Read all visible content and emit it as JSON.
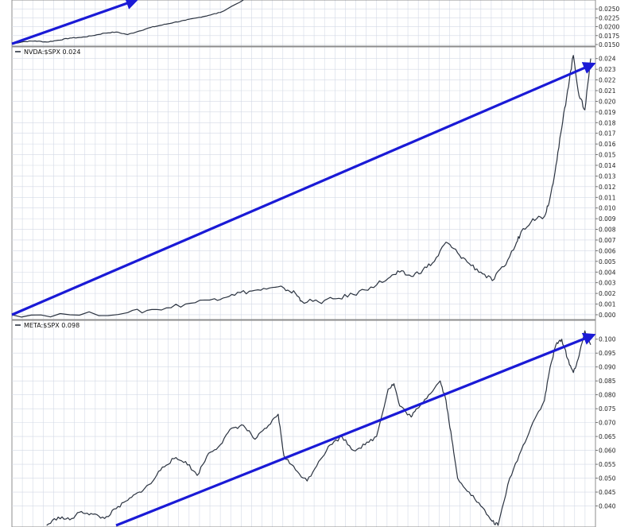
{
  "colors": {
    "background": "#ffffff",
    "grid": "#d3d9e6",
    "panel_border": "#8c8c8c",
    "price_line": "#2b3340",
    "trend_arrow": "#1a1ad6"
  },
  "chart_data": [
    {
      "type": "line",
      "title": "",
      "legend": "",
      "ylim": [
        0.015,
        0.0275
      ],
      "y_ticks": [
        "0.0250",
        "0.0225",
        "0.0200",
        "0.0175",
        "0.0150"
      ],
      "y_tick_values": [
        0.025,
        0.0225,
        0.02,
        0.0175,
        0.015
      ],
      "x_range": [
        0,
        100
      ],
      "series": [
        {
          "points": [
            [
              0,
              0.0152
            ],
            [
              2,
              0.0158
            ],
            [
              4,
              0.016
            ],
            [
              6,
              0.0157
            ],
            [
              8,
              0.0162
            ],
            [
              10,
              0.0168
            ],
            [
              12,
              0.017
            ],
            [
              14,
              0.0175
            ],
            [
              16,
              0.0182
            ],
            [
              18,
              0.0185
            ],
            [
              20,
              0.0178
            ],
            [
              22,
              0.0188
            ],
            [
              24,
              0.0198
            ],
            [
              26,
              0.0205
            ],
            [
              28,
              0.0212
            ],
            [
              30,
              0.0218
            ],
            [
              32,
              0.0225
            ],
            [
              34,
              0.0232
            ],
            [
              36,
              0.024
            ],
            [
              40,
              0.0275
            ]
          ]
        }
      ],
      "trend_arrows": [
        {
          "from": [
            0,
            0.0152
          ],
          "to": [
            21.5,
            0.0275
          ]
        }
      ]
    },
    {
      "type": "line",
      "title": "",
      "legend": "NVDA:$SPX 0.024",
      "ylim": [
        -0.0003,
        0.0245
      ],
      "y_ticks": [
        "0.024",
        "0.023",
        "0.022",
        "0.021",
        "0.020",
        "0.019",
        "0.018",
        "0.017",
        "0.016",
        "0.015",
        "0.014",
        "0.013",
        "0.012",
        "0.011",
        "0.010",
        "0.009",
        "0.008",
        "0.007",
        "0.006",
        "0.005",
        "0.004",
        "0.003",
        "0.002",
        "0.001",
        "0.000"
      ],
      "y_tick_values": [
        0.024,
        0.023,
        0.022,
        0.021,
        0.02,
        0.019,
        0.018,
        0.017,
        0.016,
        0.015,
        0.014,
        0.013,
        0.012,
        0.011,
        0.01,
        0.009,
        0.008,
        0.007,
        0.006,
        0.005,
        0.004,
        0.003,
        0.002,
        0.001,
        0.0
      ],
      "x_range": [
        0,
        100
      ],
      "series": [
        {
          "points": [
            [
              0,
              0.0
            ],
            [
              10,
              0.0
            ],
            [
              20,
              0.0002
            ],
            [
              25,
              0.0005
            ],
            [
              30,
              0.001
            ],
            [
              35,
              0.0015
            ],
            [
              38,
              0.0019
            ],
            [
              41,
              0.0022
            ],
            [
              44,
              0.0024
            ],
            [
              47,
              0.0025
            ],
            [
              49,
              0.002
            ],
            [
              50,
              0.0013
            ],
            [
              53,
              0.0012
            ],
            [
              56,
              0.0015
            ],
            [
              59,
              0.0019
            ],
            [
              62,
              0.0026
            ],
            [
              65,
              0.0034
            ],
            [
              67,
              0.004
            ],
            [
              69,
              0.0036
            ],
            [
              71,
              0.0042
            ],
            [
              73,
              0.005
            ],
            [
              75,
              0.0068
            ],
            [
              77,
              0.0058
            ],
            [
              79,
              0.0048
            ],
            [
              81,
              0.004
            ],
            [
              83,
              0.0032
            ],
            [
              85,
              0.0045
            ],
            [
              87,
              0.0065
            ],
            [
              88,
              0.0078
            ],
            [
              90,
              0.009
            ],
            [
              92,
              0.0092
            ],
            [
              93,
              0.011
            ],
            [
              94,
              0.014
            ],
            [
              95,
              0.0175
            ],
            [
              96,
              0.021
            ],
            [
              97,
              0.0243
            ],
            [
              98,
              0.0205
            ],
            [
              99,
              0.0192
            ],
            [
              100,
              0.024
            ]
          ]
        }
      ],
      "trend_arrows": [
        {
          "from": [
            0,
            0.0
          ],
          "to": [
            100.5,
            0.0235
          ]
        }
      ]
    },
    {
      "type": "line",
      "title": "",
      "legend": "META:$SPX 0.098",
      "ylim": [
        0.033,
        0.1045
      ],
      "y_ticks": [
        "0.100",
        "0.095",
        "0.090",
        "0.085",
        "0.080",
        "0.075",
        "0.070",
        "0.065",
        "0.060",
        "0.055",
        "0.050",
        "0.045",
        "0.040"
      ],
      "y_tick_values": [
        0.1,
        0.095,
        0.09,
        0.085,
        0.08,
        0.075,
        0.07,
        0.065,
        0.06,
        0.055,
        0.05,
        0.045,
        0.04
      ],
      "x_range": [
        0,
        100
      ],
      "series": [
        {
          "points": [
            [
              6,
              0.033
            ],
            [
              8,
              0.036
            ],
            [
              10,
              0.035
            ],
            [
              12,
              0.038
            ],
            [
              14,
              0.037
            ],
            [
              16,
              0.0355
            ],
            [
              18,
              0.039
            ],
            [
              20,
              0.042
            ],
            [
              22,
              0.045
            ],
            [
              24,
              0.048
            ],
            [
              26,
              0.054
            ],
            [
              28,
              0.057
            ],
            [
              30,
              0.056
            ],
            [
              32,
              0.051
            ],
            [
              34,
              0.059
            ],
            [
              36,
              0.062
            ],
            [
              38,
              0.068
            ],
            [
              40,
              0.069
            ],
            [
              42,
              0.064
            ],
            [
              44,
              0.068
            ],
            [
              46,
              0.073
            ],
            [
              47,
              0.058
            ],
            [
              49,
              0.053
            ],
            [
              51,
              0.049
            ],
            [
              53,
              0.056
            ],
            [
              55,
              0.062
            ],
            [
              57,
              0.065
            ],
            [
              59,
              0.06
            ],
            [
              61,
              0.062
            ],
            [
              63,
              0.065
            ],
            [
              65,
              0.082
            ],
            [
              66,
              0.084
            ],
            [
              67,
              0.076
            ],
            [
              69,
              0.072
            ],
            [
              70,
              0.075
            ],
            [
              72,
              0.08
            ],
            [
              74,
              0.085
            ],
            [
              75,
              0.078
            ],
            [
              76,
              0.064
            ],
            [
              77,
              0.05
            ],
            [
              79,
              0.045
            ],
            [
              81,
              0.04
            ],
            [
              83,
              0.0345
            ],
            [
              84,
              0.033
            ],
            [
              86,
              0.05
            ],
            [
              88,
              0.06
            ],
            [
              90,
              0.07
            ],
            [
              92,
              0.078
            ],
            [
              93,
              0.09
            ],
            [
              94,
              0.098
            ],
            [
              95,
              0.1
            ],
            [
              96,
              0.093
            ],
            [
              97,
              0.088
            ],
            [
              98,
              0.094
            ],
            [
              99,
              0.103
            ],
            [
              100,
              0.098
            ]
          ]
        }
      ],
      "trend_arrows": [
        {
          "from": [
            18,
            0.033
          ],
          "to": [
            100.5,
            0.1015
          ]
        }
      ]
    }
  ]
}
